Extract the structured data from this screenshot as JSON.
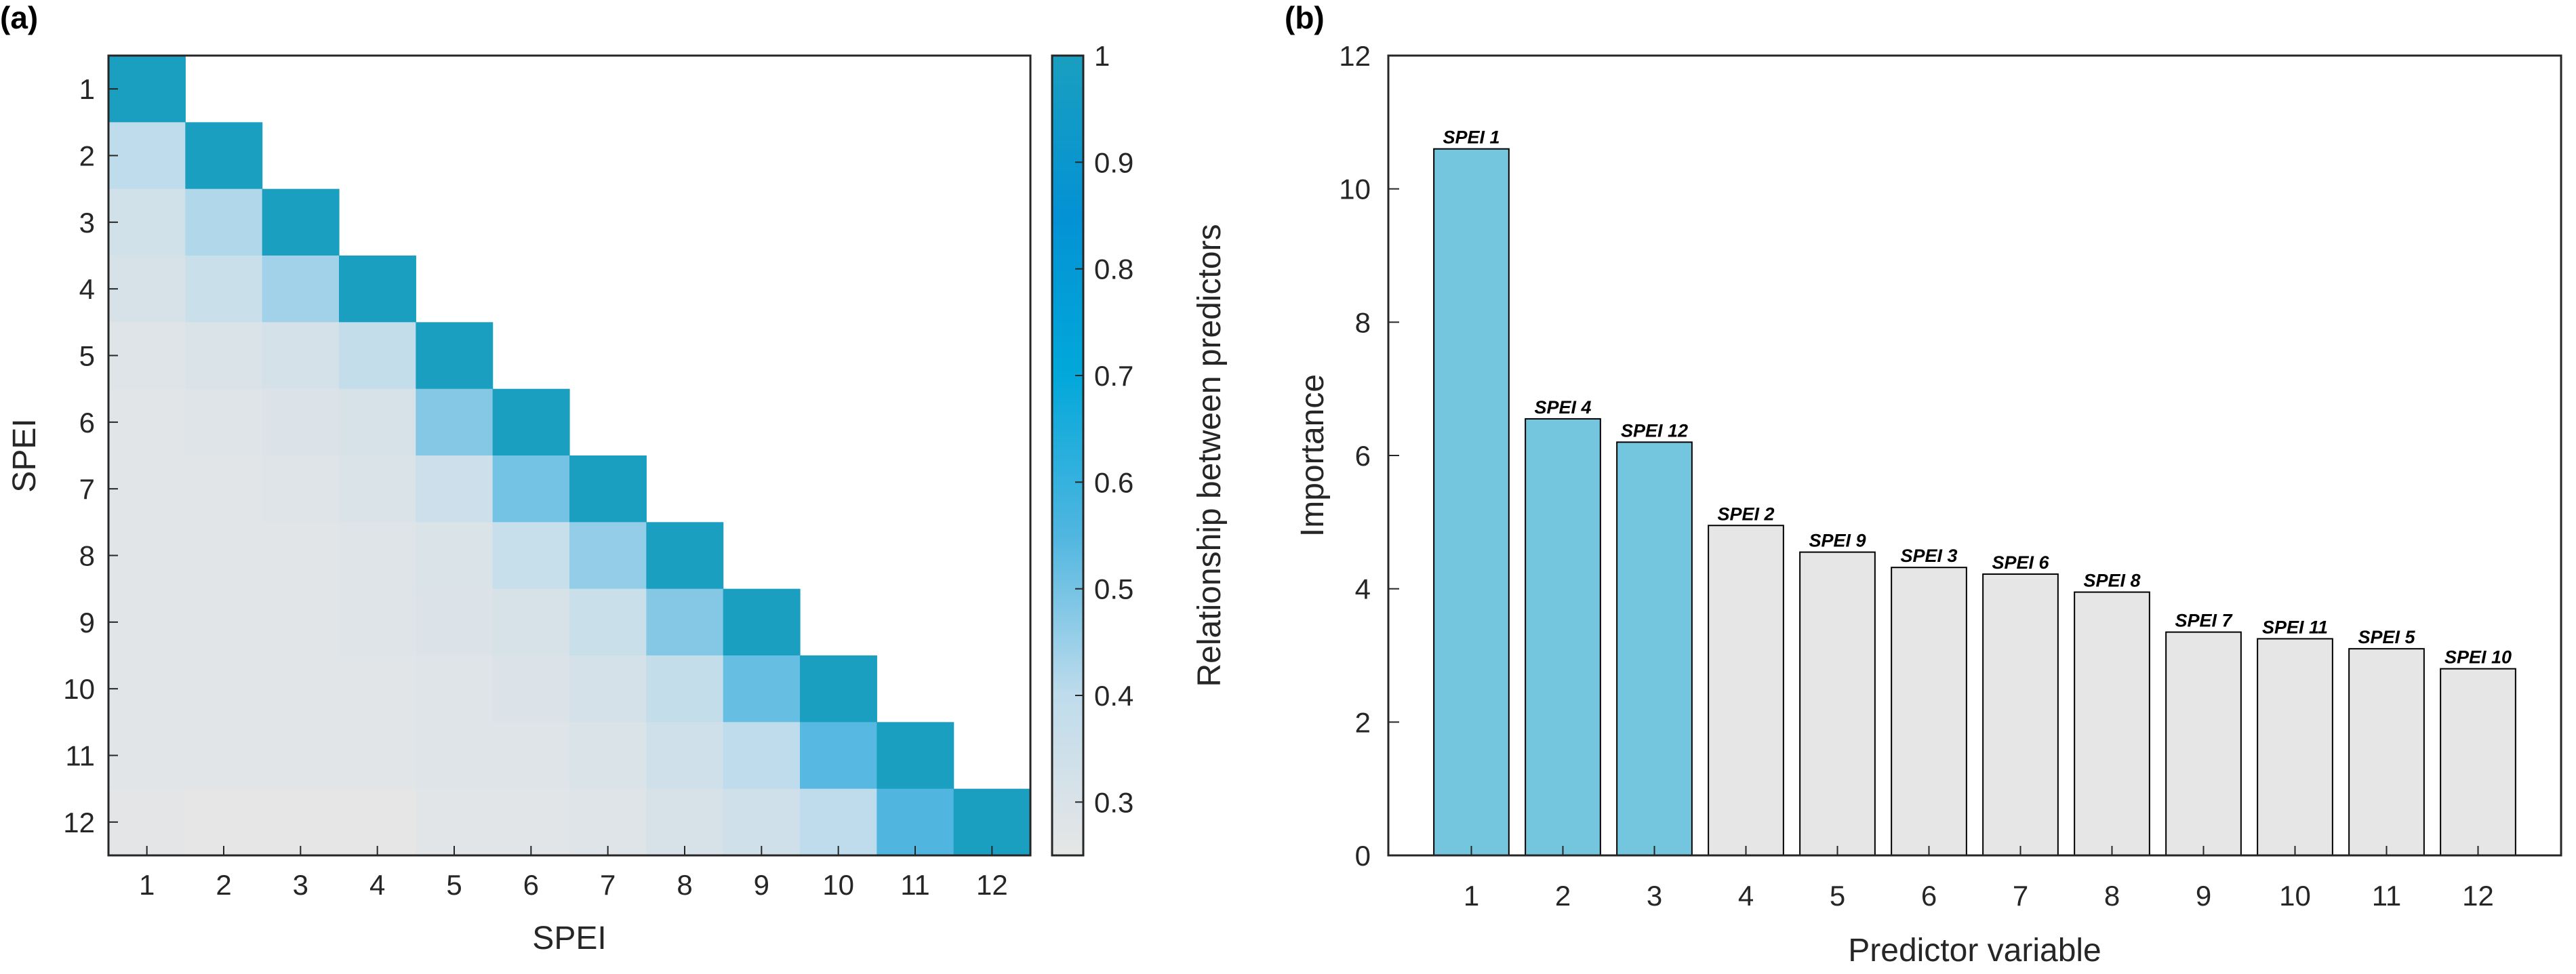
{
  "chart_data": [
    {
      "panel": "(a)",
      "type": "heatmap",
      "xlabel": "SPEI",
      "ylabel": "SPEI",
      "x_tick_labels": [
        "1",
        "2",
        "3",
        "4",
        "5",
        "6",
        "7",
        "8",
        "9",
        "10",
        "11",
        "12"
      ],
      "y_tick_labels": [
        "1",
        "2",
        "3",
        "4",
        "5",
        "6",
        "7",
        "8",
        "9",
        "10",
        "11",
        "12"
      ],
      "colorbar": {
        "label": "Relationship between predictors",
        "range": [
          0.25,
          1
        ],
        "ticks": [
          0.3,
          0.4,
          0.5,
          0.6,
          0.7,
          0.8,
          0.9,
          1
        ],
        "tick_labels": [
          "0.3",
          "0.4",
          "0.5",
          "0.6",
          "0.7",
          "0.8",
          "0.9",
          "1"
        ],
        "colors": [
          "#e6e6e6",
          "#bfdcec",
          "#50b6e0",
          "#02a8da",
          "#0392d4",
          "#1a9fc0"
        ]
      },
      "matrix_lower_triangle": [
        [
          1.0
        ],
        [
          0.4,
          1.0
        ],
        [
          0.33,
          0.42,
          1.0
        ],
        [
          0.31,
          0.36,
          0.44,
          1.0
        ],
        [
          0.28,
          0.3,
          0.32,
          0.38,
          1.0
        ],
        [
          0.27,
          0.28,
          0.29,
          0.31,
          0.48,
          1.0
        ],
        [
          0.27,
          0.27,
          0.28,
          0.3,
          0.35,
          0.5,
          1.0
        ],
        [
          0.27,
          0.27,
          0.27,
          0.28,
          0.3,
          0.37,
          0.46,
          1.0
        ],
        [
          0.27,
          0.27,
          0.27,
          0.28,
          0.29,
          0.31,
          0.36,
          0.48,
          1.0
        ],
        [
          0.27,
          0.27,
          0.27,
          0.27,
          0.28,
          0.29,
          0.32,
          0.38,
          0.52,
          1.0
        ],
        [
          0.27,
          0.27,
          0.27,
          0.27,
          0.28,
          0.28,
          0.3,
          0.34,
          0.4,
          0.54,
          1.0
        ],
        [
          0.26,
          0.25,
          0.25,
          0.24,
          0.27,
          0.27,
          0.28,
          0.31,
          0.34,
          0.4,
          0.55,
          1.0
        ]
      ]
    },
    {
      "panel": "(b)",
      "type": "bar",
      "xlabel": "Predictor variable",
      "ylabel": "Importance",
      "ylim": [
        0,
        12
      ],
      "yticks": [
        "0",
        "2",
        "4",
        "6",
        "8",
        "10",
        "12"
      ],
      "categories": [
        "1",
        "2",
        "3",
        "4",
        "5",
        "6",
        "7",
        "8",
        "9",
        "10",
        "11",
        "12"
      ],
      "values": [
        10.6,
        6.55,
        6.2,
        4.95,
        4.55,
        4.32,
        4.22,
        3.95,
        3.35,
        3.25,
        3.1,
        2.8
      ],
      "bar_labels": [
        "SPEI 1",
        "SPEI 4",
        "SPEI 12",
        "SPEI 2",
        "SPEI 9",
        "SPEI 3",
        "SPEI 6",
        "SPEI 8",
        "SPEI 7",
        "SPEI 11",
        "SPEI 5",
        "SPEI 10"
      ],
      "highlight_count": 3,
      "colors": {
        "highlight": "#73c6de",
        "default": "#e6e6e6",
        "edge": "#000000"
      }
    }
  ]
}
